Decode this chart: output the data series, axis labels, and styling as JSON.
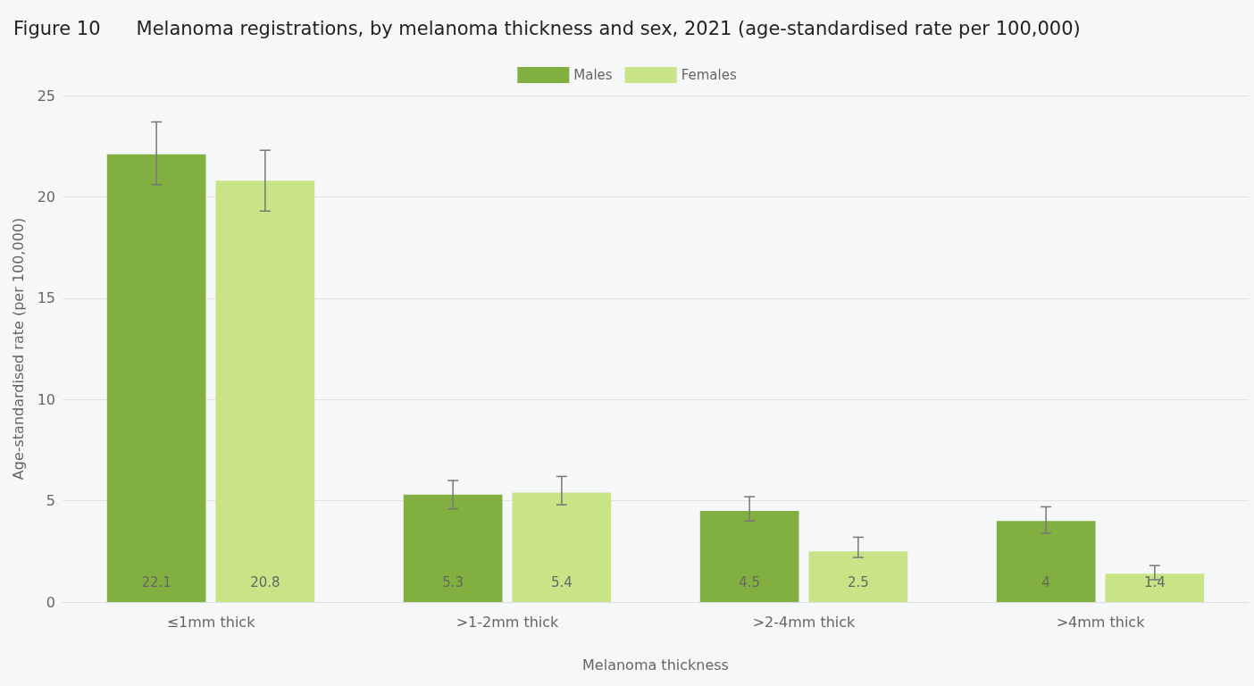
{
  "chart_data": {
    "type": "bar",
    "title": "Figure 10      Melanoma registrations, by melanoma thickness and sex, 2021 (age-standardised rate per 100,000)",
    "xlabel": "Melanoma thickness",
    "ylabel": "Age-standardised rate (per 100,000)",
    "categories": [
      "≤1mm thick",
      ">1-2mm thick",
      ">2-4mm thick",
      ">4mm thick"
    ],
    "series": [
      {
        "name": "Males",
        "color": "#82b040",
        "values": [
          22.1,
          5.3,
          4.5,
          4
        ],
        "errors": [
          [
            20.6,
            23.7
          ],
          [
            4.6,
            6.0
          ],
          [
            4.0,
            5.2
          ],
          [
            3.4,
            4.7
          ]
        ]
      },
      {
        "name": "Females",
        "color": "#c8e486",
        "values": [
          20.8,
          5.4,
          2.5,
          1.4
        ],
        "errors": [
          [
            19.3,
            22.3
          ],
          [
            4.8,
            6.2
          ],
          [
            2.2,
            3.2
          ],
          [
            1.1,
            1.8
          ]
        ]
      }
    ],
    "ylim": [
      0,
      25
    ],
    "yticks": [
      0,
      5,
      10,
      15,
      20,
      25
    ],
    "grid": "y",
    "legend": "top",
    "data_labels": true
  }
}
